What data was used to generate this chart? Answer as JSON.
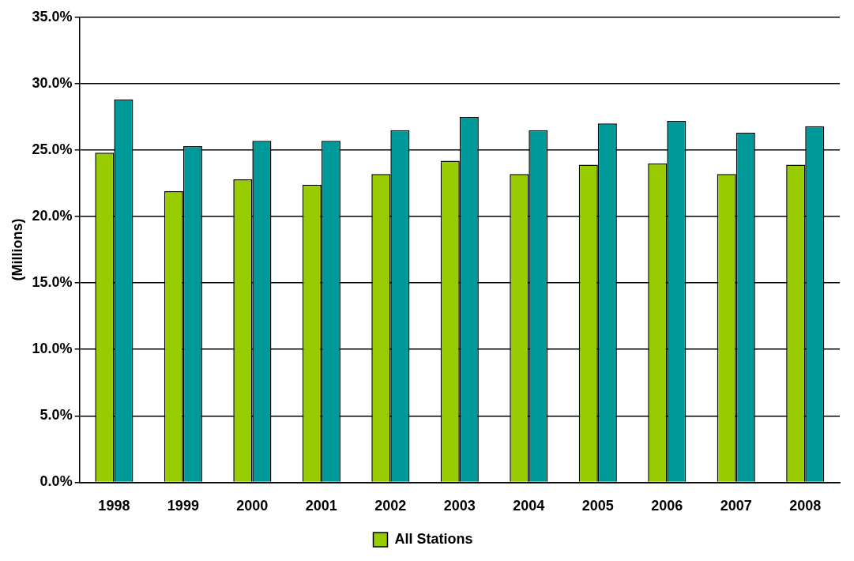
{
  "chart_data": {
    "type": "bar",
    "ylabel": "(Millions)",
    "categories": [
      "1998",
      "1999",
      "2000",
      "2001",
      "2002",
      "2003",
      "2004",
      "2005",
      "2006",
      "2007",
      "2008"
    ],
    "series": [
      {
        "name": "All Stations",
        "color": "#99cc00",
        "values": [
          24.8,
          21.9,
          22.8,
          22.4,
          23.2,
          24.2,
          23.2,
          23.9,
          24.0,
          23.2,
          23.9
        ]
      },
      {
        "color": "#009999",
        "values": [
          28.8,
          25.3,
          25.7,
          25.7,
          26.5,
          27.5,
          26.5,
          27.0,
          27.2,
          26.3,
          26.8
        ]
      }
    ],
    "ylim": [
      0,
      35
    ],
    "yticks": [
      {
        "value": 0,
        "label": "0.0%"
      },
      {
        "value": 5,
        "label": "5.0%"
      },
      {
        "value": 10,
        "label": "10.0%"
      },
      {
        "value": 15,
        "label": "15.0%"
      },
      {
        "value": 20,
        "label": "20.0%"
      },
      {
        "value": 25,
        "label": "25.0%"
      },
      {
        "value": 30,
        "label": "30.0%"
      },
      {
        "value": 35,
        "label": "35.0%"
      }
    ],
    "grid": "y",
    "legend": "bottom"
  }
}
